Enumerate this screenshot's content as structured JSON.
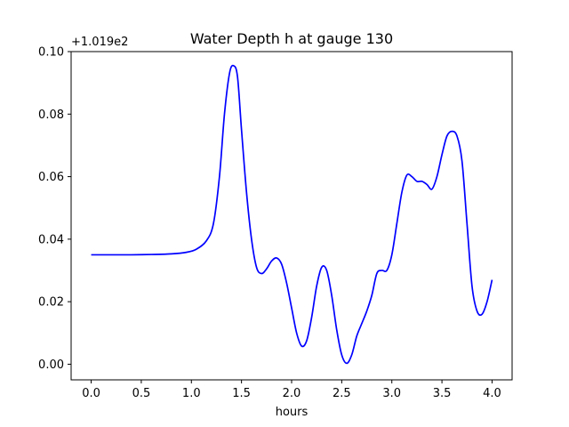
{
  "chart_data": {
    "type": "line",
    "title": "Water Depth h at gauge 130",
    "xlabel": "hours",
    "ylabel": "",
    "offset_text": "+1.019e2",
    "xlim": [
      -0.2,
      4.2
    ],
    "ylim": [
      -0.005,
      0.1
    ],
    "grid": false,
    "xticks": [
      0.0,
      0.5,
      1.0,
      1.5,
      2.0,
      2.5,
      3.0,
      3.5,
      4.0
    ],
    "xtick_labels": [
      "0.0",
      "0.5",
      "1.0",
      "1.5",
      "2.0",
      "2.5",
      "3.0",
      "3.5",
      "4.0"
    ],
    "yticks": [
      0.0,
      0.02,
      0.04,
      0.06,
      0.08,
      0.1
    ],
    "ytick_labels": [
      "0.00",
      "0.02",
      "0.04",
      "0.06",
      "0.08",
      "0.10"
    ],
    "series": [
      {
        "color": "#0000ff",
        "x": [
          0.0,
          0.2,
          0.4,
          0.6,
          0.8,
          0.95,
          1.05,
          1.15,
          1.22,
          1.28,
          1.33,
          1.38,
          1.42,
          1.46,
          1.5,
          1.55,
          1.6,
          1.65,
          1.7,
          1.75,
          1.8,
          1.85,
          1.9,
          1.95,
          2.0,
          2.05,
          2.1,
          2.15,
          2.2,
          2.25,
          2.3,
          2.35,
          2.4,
          2.45,
          2.5,
          2.55,
          2.6,
          2.65,
          2.7,
          2.75,
          2.8,
          2.85,
          2.9,
          2.95,
          3.0,
          3.05,
          3.1,
          3.15,
          3.2,
          3.25,
          3.3,
          3.35,
          3.4,
          3.45,
          3.5,
          3.55,
          3.6,
          3.65,
          3.7,
          3.75,
          3.8,
          3.85,
          3.9,
          3.95,
          4.0
        ],
        "y": [
          0.035,
          0.035,
          0.035,
          0.0351,
          0.0353,
          0.0358,
          0.0368,
          0.0395,
          0.045,
          0.06,
          0.08,
          0.093,
          0.0955,
          0.092,
          0.075,
          0.055,
          0.04,
          0.031,
          0.029,
          0.0305,
          0.033,
          0.034,
          0.032,
          0.026,
          0.018,
          0.01,
          0.0058,
          0.0075,
          0.015,
          0.025,
          0.031,
          0.03,
          0.022,
          0.011,
          0.003,
          0.0003,
          0.003,
          0.009,
          0.013,
          0.017,
          0.022,
          0.029,
          0.03,
          0.03,
          0.035,
          0.045,
          0.055,
          0.0605,
          0.06,
          0.0585,
          0.0585,
          0.0575,
          0.056,
          0.06,
          0.067,
          0.073,
          0.0745,
          0.073,
          0.065,
          0.045,
          0.025,
          0.017,
          0.016,
          0.02,
          0.027
        ]
      }
    ]
  }
}
